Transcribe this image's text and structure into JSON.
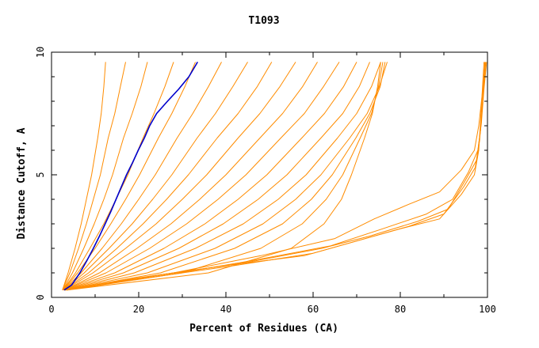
{
  "chart_data": {
    "type": "line",
    "title": "T1093",
    "xlabel": "Percent of Residues (CA)",
    "ylabel": "Distance Cutoff, A",
    "xlim": [
      0,
      100
    ],
    "ylim": [
      0,
      10
    ],
    "x_ticks": [
      "0",
      "20",
      "40",
      "60",
      "80",
      "100"
    ],
    "y_ticks": [
      "0",
      "5",
      "10"
    ],
    "grid": false,
    "legend": "none",
    "colors": {
      "models": "#ff8c00",
      "highlight": "#0000cc",
      "axes": "#000000",
      "background": "#ffffff"
    },
    "series": [
      {
        "role": "highlight",
        "x": [
          2.9,
          4.6,
          6.5,
          8.1,
          9.6,
          11.0,
          12.3,
          13.6,
          14.8,
          16.0,
          17.2,
          18.6,
          19.9,
          21.3,
          22.5,
          24.1,
          26.6,
          29.2,
          31.5,
          33.5
        ],
        "y": [
          0.3,
          0.5,
          1.0,
          1.5,
          2.0,
          2.5,
          3.0,
          3.5,
          4.0,
          4.5,
          5.0,
          5.5,
          6.0,
          6.5,
          7.0,
          7.5,
          8.0,
          8.5,
          9.0,
          9.6
        ]
      },
      {
        "x": [
          2.5,
          3.8,
          5.4,
          6.8,
          8.0,
          9.2,
          10.6,
          11.4,
          12.0,
          12.4
        ],
        "y": [
          0.3,
          1.0,
          2.0,
          3.0,
          4.0,
          5.0,
          6.5,
          7.5,
          8.6,
          9.6
        ]
      },
      {
        "x": [
          2.5,
          4.2,
          6.2,
          8.0,
          9.6,
          11.2,
          13.0,
          14.5,
          15.8,
          17.0
        ],
        "y": [
          0.3,
          1.0,
          2.0,
          3.0,
          4.0,
          5.0,
          6.5,
          7.5,
          8.6,
          9.6
        ]
      },
      {
        "x": [
          2.6,
          4.8,
          7.4,
          9.8,
          12.0,
          14.0,
          16.5,
          18.5,
          20.5,
          22.0
        ],
        "y": [
          0.3,
          1.0,
          2.0,
          3.0,
          4.0,
          5.0,
          6.5,
          7.5,
          8.6,
          9.6
        ]
      },
      {
        "x": [
          2.6,
          5.5,
          8.8,
          12.0,
          14.8,
          17.5,
          21.0,
          23.5,
          26.0,
          28.0
        ],
        "y": [
          0.3,
          1.0,
          2.0,
          3.0,
          4.0,
          5.0,
          6.5,
          7.5,
          8.6,
          9.6
        ]
      },
      {
        "x": [
          2.7,
          6.0,
          10.0,
          13.6,
          17.0,
          20.2,
          24.5,
          27.6,
          30.6,
          33.0
        ],
        "y": [
          0.3,
          1.0,
          2.0,
          3.0,
          4.0,
          5.0,
          6.5,
          7.5,
          8.6,
          9.6
        ]
      },
      {
        "x": [
          2.7,
          6.8,
          11.6,
          16.0,
          20.0,
          23.8,
          28.8,
          32.4,
          36.0,
          39.0
        ],
        "y": [
          0.3,
          1.0,
          2.0,
          3.0,
          4.0,
          5.0,
          6.5,
          7.5,
          8.6,
          9.6
        ]
      },
      {
        "x": [
          2.8,
          7.5,
          13.2,
          18.5,
          23.2,
          27.6,
          33.4,
          37.6,
          41.6,
          45.0
        ],
        "y": [
          0.3,
          1.0,
          2.0,
          3.0,
          4.0,
          5.0,
          6.5,
          7.5,
          8.6,
          9.6
        ]
      },
      {
        "x": [
          2.8,
          8.5,
          15.0,
          21.0,
          26.4,
          31.4,
          38.0,
          42.8,
          47.2,
          50.5
        ],
        "y": [
          0.3,
          1.0,
          2.0,
          3.0,
          4.0,
          5.0,
          6.5,
          7.5,
          8.6,
          9.6
        ]
      },
      {
        "x": [
          2.9,
          9.5,
          17.0,
          24.0,
          30.0,
          35.6,
          42.8,
          47.8,
          52.4,
          56.0
        ],
        "y": [
          0.3,
          1.0,
          2.0,
          3.0,
          4.0,
          5.0,
          6.5,
          7.5,
          8.6,
          9.6
        ]
      },
      {
        "x": [
          3.0,
          11.0,
          19.6,
          27.4,
          34.0,
          40.0,
          47.8,
          53.0,
          57.6,
          61.0
        ],
        "y": [
          0.3,
          1.0,
          2.0,
          3.0,
          4.0,
          5.0,
          6.5,
          7.5,
          8.6,
          9.6
        ]
      },
      {
        "x": [
          3.0,
          12.5,
          22.5,
          31.0,
          38.2,
          44.6,
          52.6,
          58.0,
          62.4,
          66.0
        ],
        "y": [
          0.3,
          1.0,
          2.0,
          3.0,
          4.0,
          5.0,
          6.5,
          7.5,
          8.6,
          9.6
        ]
      },
      {
        "x": [
          3.1,
          14.5,
          25.8,
          35.2,
          42.8,
          49.4,
          57.4,
          62.6,
          67.0,
          70.0
        ],
        "y": [
          0.3,
          1.0,
          2.0,
          3.0,
          4.0,
          5.0,
          6.5,
          7.5,
          8.6,
          9.6
        ]
      },
      {
        "x": [
          3.2,
          16.5,
          29.2,
          39.4,
          47.4,
          54.0,
          61.8,
          66.8,
          70.6,
          73.0
        ],
        "y": [
          0.3,
          1.0,
          2.0,
          3.0,
          4.0,
          5.0,
          6.5,
          7.5,
          8.6,
          9.6
        ]
      },
      {
        "x": [
          3.3,
          19.0,
          33.0,
          44.0,
          52.0,
          58.4,
          65.6,
          70.0,
          73.4,
          75.5
        ],
        "y": [
          0.3,
          1.0,
          2.0,
          3.0,
          4.0,
          5.0,
          6.5,
          7.5,
          8.6,
          9.6
        ]
      },
      {
        "x": [
          3.4,
          22.0,
          37.5,
          48.5,
          56.0,
          61.8,
          68.4,
          72.4,
          75.2,
          77.0
        ],
        "y": [
          0.3,
          1.0,
          2.0,
          3.0,
          4.0,
          5.0,
          6.5,
          7.5,
          8.6,
          9.6
        ]
      },
      {
        "x": [
          3.4,
          25.0,
          42.0,
          53.0,
          59.6,
          64.4,
          69.8,
          73.0,
          75.4,
          76.5
        ],
        "y": [
          0.3,
          1.0,
          2.0,
          3.0,
          4.0,
          5.0,
          6.5,
          7.5,
          8.6,
          9.6
        ]
      },
      {
        "x": [
          3.5,
          30.0,
          48.0,
          57.5,
          63.0,
          66.8,
          70.8,
          73.4,
          75.0,
          76.0
        ],
        "y": [
          0.3,
          1.0,
          2.0,
          3.0,
          4.0,
          5.0,
          6.5,
          7.5,
          8.6,
          9.6
        ]
      },
      {
        "x": [
          3.6,
          36.0,
          55.0,
          62.5,
          66.5,
          68.8,
          71.8,
          73.6,
          74.8,
          75.5
        ],
        "y": [
          0.3,
          1.0,
          2.0,
          3.0,
          4.0,
          5.0,
          6.5,
          7.5,
          8.6,
          9.6
        ]
      },
      {
        "x": [
          3.0,
          20.0,
          40.0,
          58.0,
          68.0,
          80.0,
          89.0,
          94.0,
          97.0,
          98.0,
          98.5,
          99.2
        ],
        "y": [
          0.3,
          0.8,
          1.3,
          1.7,
          2.2,
          2.8,
          3.2,
          4.2,
          5.0,
          6.0,
          7.5,
          9.6
        ]
      },
      {
        "x": [
          3.0,
          22.0,
          42.0,
          60.0,
          70.0,
          82.0,
          90.0,
          94.5,
          97.2,
          98.2,
          98.8,
          99.4
        ],
        "y": [
          0.3,
          0.8,
          1.3,
          1.8,
          2.3,
          2.9,
          3.4,
          4.5,
          5.3,
          6.4,
          7.8,
          9.6
        ]
      },
      {
        "x": [
          3.0,
          24.0,
          44.0,
          62.0,
          73.0,
          84.0,
          91.0,
          95.0,
          97.5,
          98.4,
          99.0,
          99.6
        ],
        "y": [
          0.3,
          0.9,
          1.4,
          2.0,
          2.5,
          3.1,
          3.6,
          4.8,
          5.6,
          6.8,
          8.2,
          9.6
        ]
      },
      {
        "x": [
          3.0,
          26.0,
          46.0,
          64.0,
          76.0,
          86.0,
          92.0,
          95.6,
          97.8,
          98.6,
          99.2,
          99.8
        ],
        "y": [
          0.3,
          0.9,
          1.5,
          2.1,
          2.8,
          3.4,
          4.0,
          5.1,
          6.0,
          7.1,
          8.5,
          9.6
        ]
      },
      {
        "x": [
          3.0,
          28.0,
          48.0,
          65.0,
          74.0,
          82.0,
          89.0,
          94.0,
          97.0,
          98.0,
          98.8,
          99.5
        ],
        "y": [
          0.3,
          1.0,
          1.7,
          2.4,
          3.2,
          3.8,
          4.3,
          5.2,
          6.0,
          7.0,
          8.3,
          9.6
        ]
      }
    ]
  }
}
